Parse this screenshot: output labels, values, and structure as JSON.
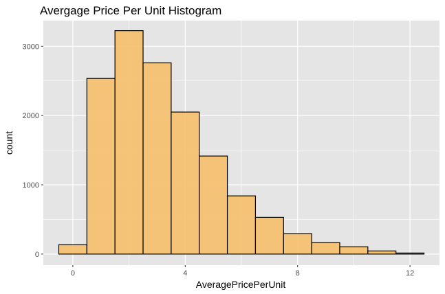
{
  "chart_data": {
    "type": "histogram",
    "title": "Avergage Price Per Unit Histogram",
    "xlabel": "AveragePricePerUnit",
    "ylabel": "count",
    "xlim": [
      -1.05,
      13.05
    ],
    "ylim": [
      -160,
      3370
    ],
    "x_ticks": [
      0,
      4,
      8,
      12
    ],
    "y_ticks": [
      0,
      1000,
      2000,
      3000
    ],
    "grid": true,
    "bin_width": 1,
    "bins": [
      {
        "start": -0.5,
        "end": 0.5,
        "count": 135
      },
      {
        "start": 0.5,
        "end": 1.5,
        "count": 2535
      },
      {
        "start": 1.5,
        "end": 2.5,
        "count": 3225
      },
      {
        "start": 2.5,
        "end": 3.5,
        "count": 2760
      },
      {
        "start": 3.5,
        "end": 4.5,
        "count": 2050
      },
      {
        "start": 4.5,
        "end": 5.5,
        "count": 1415
      },
      {
        "start": 5.5,
        "end": 6.5,
        "count": 840
      },
      {
        "start": 6.5,
        "end": 7.5,
        "count": 530
      },
      {
        "start": 7.5,
        "end": 8.5,
        "count": 295
      },
      {
        "start": 8.5,
        "end": 9.5,
        "count": 165
      },
      {
        "start": 9.5,
        "end": 10.5,
        "count": 105
      },
      {
        "start": 10.5,
        "end": 11.5,
        "count": 45
      },
      {
        "start": 11.5,
        "end": 12.5,
        "count": 15
      }
    ],
    "colors": {
      "panel_background": "#e5e5e5",
      "grid": "#ffffff",
      "bar_fill": "#f5c06e",
      "bar_stroke": "#000000"
    }
  }
}
